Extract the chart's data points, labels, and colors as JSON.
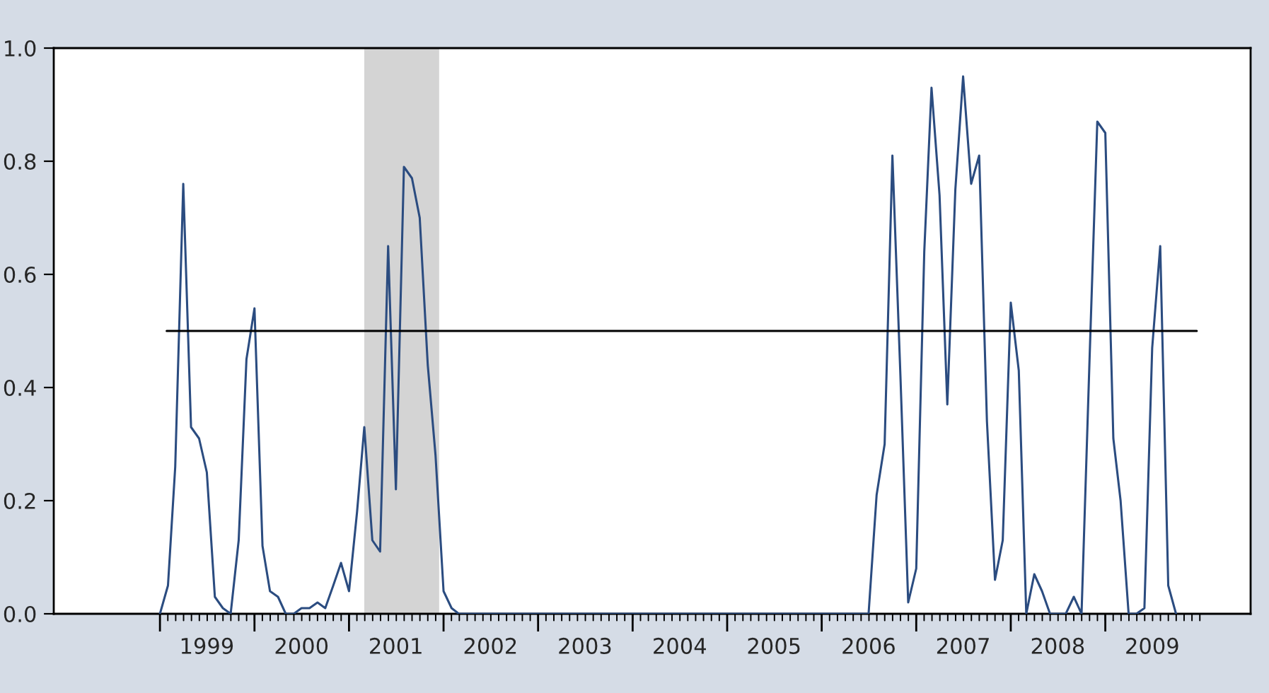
{
  "chart_data": {
    "type": "line",
    "x": [
      "1999-01",
      "1999-02",
      "1999-03",
      "1999-04",
      "1999-05",
      "1999-06",
      "1999-07",
      "1999-08",
      "1999-09",
      "1999-10",
      "1999-11",
      "1999-12",
      "2000-01",
      "2000-02",
      "2000-03",
      "2000-04",
      "2000-05",
      "2000-06",
      "2000-07",
      "2000-08",
      "2000-09",
      "2000-10",
      "2000-11",
      "2000-12",
      "2001-01",
      "2001-02",
      "2001-03",
      "2001-04",
      "2001-05",
      "2001-06",
      "2001-07",
      "2001-08",
      "2001-09",
      "2001-10",
      "2001-11",
      "2001-12",
      "2002-01",
      "2002-02",
      "2002-03",
      "2002-04",
      "2002-05",
      "2002-06",
      "2002-07",
      "2002-08",
      "2002-09",
      "2002-10",
      "2002-11",
      "2002-12",
      "2003-01",
      "2003-02",
      "2003-03",
      "2003-04",
      "2003-05",
      "2003-06",
      "2003-07",
      "2003-08",
      "2003-09",
      "2003-10",
      "2003-11",
      "2003-12",
      "2004-01",
      "2004-02",
      "2004-03",
      "2004-04",
      "2004-05",
      "2004-06",
      "2004-07",
      "2004-08",
      "2004-09",
      "2004-10",
      "2004-11",
      "2004-12",
      "2005-01",
      "2005-02",
      "2005-03",
      "2005-04",
      "2005-05",
      "2005-06",
      "2005-07",
      "2005-08",
      "2005-09",
      "2005-10",
      "2005-11",
      "2005-12",
      "2006-01",
      "2006-02",
      "2006-03",
      "2006-04",
      "2006-05",
      "2006-06",
      "2006-07",
      "2006-08",
      "2006-09",
      "2006-10",
      "2006-11",
      "2006-12",
      "2007-01",
      "2007-02",
      "2007-03",
      "2007-04",
      "2007-05",
      "2007-06",
      "2007-07",
      "2007-08",
      "2007-09",
      "2007-10",
      "2007-11",
      "2007-12",
      "2008-01",
      "2008-02",
      "2008-03",
      "2008-04",
      "2008-05",
      "2008-06",
      "2008-07",
      "2008-08",
      "2008-09",
      "2008-10",
      "2008-11",
      "2008-12",
      "2009-01",
      "2009-02",
      "2009-03",
      "2009-04",
      "2009-05",
      "2009-06",
      "2009-07",
      "2009-08",
      "2009-09",
      "2009-10"
    ],
    "series": [
      {
        "color": "#2b4c80",
        "values": [
          0.0,
          0.05,
          0.26,
          0.76,
          0.33,
          0.31,
          0.25,
          0.03,
          0.01,
          0.0,
          0.13,
          0.45,
          0.54,
          0.12,
          0.04,
          0.03,
          0.0,
          0.0,
          0.01,
          0.01,
          0.02,
          0.01,
          0.05,
          0.09,
          0.04,
          0.18,
          0.33,
          0.13,
          0.11,
          0.65,
          0.22,
          0.79,
          0.77,
          0.7,
          0.44,
          0.28,
          0.04,
          0.01,
          0.0,
          0.0,
          0.0,
          0.0,
          0.0,
          0.0,
          0.0,
          0.0,
          0.0,
          0.0,
          0.0,
          0.0,
          0.0,
          0.0,
          0.0,
          0.0,
          0.0,
          0.0,
          0.0,
          0.0,
          0.0,
          0.0,
          0.0,
          0.0,
          0.0,
          0.0,
          0.0,
          0.0,
          0.0,
          0.0,
          0.0,
          0.0,
          0.0,
          0.0,
          0.0,
          0.0,
          0.0,
          0.0,
          0.0,
          0.0,
          0.0,
          0.0,
          0.0,
          0.0,
          0.0,
          0.0,
          0.0,
          0.0,
          0.0,
          0.0,
          0.0,
          0.0,
          0.0,
          0.21,
          0.3,
          0.81,
          0.42,
          0.02,
          0.08,
          0.64,
          0.93,
          0.74,
          0.37,
          0.75,
          0.95,
          0.76,
          0.81,
          0.34,
          0.06,
          0.13,
          0.55,
          0.43,
          0.0,
          0.07,
          0.04,
          0.0,
          0.0,
          0.0,
          0.03,
          0.0,
          0.45,
          0.87,
          0.85,
          0.31,
          0.2,
          0.0,
          0.0,
          0.01,
          0.47,
          0.65,
          0.05,
          0.0
        ]
      },
      {
        "color": "#000000",
        "x": [
          "1999-01-27",
          "2009-12-20"
        ],
        "values": [
          0.5,
          0.5
        ]
      }
    ],
    "bands": [
      {
        "axis": "x",
        "from": "2001-03",
        "to": "2001-12-15",
        "color": "#d4d4d4"
      }
    ],
    "xlim": [
      "1997-11-17",
      "2010-07-16"
    ],
    "xticks": [
      {
        "value": "1999-01",
        "label": null
      },
      {
        "value": "1999-07",
        "label": "1999"
      },
      {
        "value": "2000-01",
        "label": null
      },
      {
        "value": "2000-07",
        "label": "2000"
      },
      {
        "value": "2001-01",
        "label": null
      },
      {
        "value": "2001-07",
        "label": "2001"
      },
      {
        "value": "2002-01",
        "label": null
      },
      {
        "value": "2002-07",
        "label": "2002"
      },
      {
        "value": "2003-01",
        "label": null
      },
      {
        "value": "2003-07",
        "label": "2003"
      },
      {
        "value": "2004-01",
        "label": null
      },
      {
        "value": "2004-07",
        "label": "2004"
      },
      {
        "value": "2005-01",
        "label": null
      },
      {
        "value": "2005-07",
        "label": "2005"
      },
      {
        "value": "2006-01",
        "label": null
      },
      {
        "value": "2006-07",
        "label": "2006"
      },
      {
        "value": "2007-01",
        "label": null
      },
      {
        "value": "2007-07",
        "label": "2007"
      },
      {
        "value": "2008-01",
        "label": null
      },
      {
        "value": "2008-07",
        "label": "2008"
      },
      {
        "value": "2009-01",
        "label": null
      },
      {
        "value": "2009-07",
        "label": "2009"
      }
    ],
    "ylim": [
      0,
      1
    ],
    "yticks": [
      {
        "value": 0,
        "label": "0.0"
      },
      {
        "value": 0.2,
        "label": "0.2"
      },
      {
        "value": 0.4,
        "label": "0.4"
      },
      {
        "value": 0.6,
        "label": "0.6"
      },
      {
        "value": 0.8,
        "label": "0.8"
      },
      {
        "value": 1,
        "label": "1.0"
      }
    ],
    "grid": false,
    "legend": false,
    "marker": "none",
    "line_style": "solid"
  }
}
